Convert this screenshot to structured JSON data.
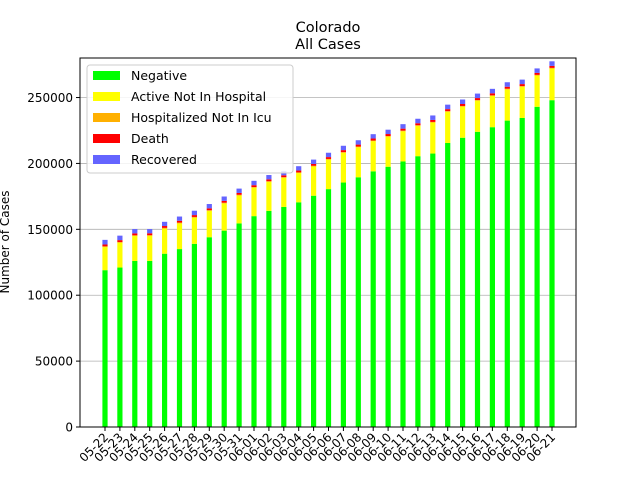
{
  "chart_data": {
    "type": "bar",
    "stacked": true,
    "title": "Colorado",
    "subtitle": "All Cases",
    "xlabel": "",
    "ylabel": "Number of Cases",
    "ylim": [
      0,
      280000
    ],
    "yticks": [
      0,
      50000,
      100000,
      150000,
      200000,
      250000
    ],
    "grid": "horizontal",
    "legend_position": "top-left",
    "categories": [
      "05-22",
      "05-23",
      "05-24",
      "05-25",
      "05-26",
      "05-27",
      "05-28",
      "05-29",
      "05-30",
      "05-31",
      "06-01",
      "06-02",
      "06-03",
      "06-04",
      "06-05",
      "06-06",
      "06-07",
      "06-08",
      "06-09",
      "06-10",
      "06-11",
      "06-12",
      "06-13",
      "06-14",
      "06-15",
      "06-16",
      "06-17",
      "06-18",
      "06-19",
      "06-20",
      "06-21"
    ],
    "series": [
      {
        "name": "Negative",
        "color": "#00ff00",
        "values": [
          119000,
          121000,
          126000,
          126000,
          131500,
          135000,
          139000,
          144000,
          149000,
          154500,
          160000,
          164000,
          167000,
          170500,
          175500,
          180500,
          185500,
          189500,
          194000,
          197500,
          201500,
          205500,
          207500,
          215500,
          219500,
          224000,
          227500,
          232500,
          234500,
          243000,
          248000
        ]
      },
      {
        "name": "Active Not In Hospital",
        "color": "#ffff00",
        "values": [
          17500,
          18800,
          18900,
          19000,
          19000,
          19500,
          19800,
          20000,
          20700,
          21200,
          21600,
          22000,
          22100,
          22200,
          22200,
          22400,
          22600,
          22800,
          22900,
          22800,
          22900,
          23000,
          23500,
          23700,
          23600,
          23600,
          23700,
          23700,
          23700,
          23700,
          24000
        ]
      },
      {
        "name": "Hospitalized Not In Icu",
        "color": "#ffb000",
        "values": [
          600,
          600,
          600,
          600,
          600,
          600,
          600,
          500,
          500,
          500,
          500,
          500,
          500,
          500,
          500,
          500,
          500,
          500,
          500,
          500,
          500,
          500,
          500,
          500,
          500,
          500,
          500,
          500,
          500,
          500,
          500
        ]
      },
      {
        "name": "Death",
        "color": "#ff0000",
        "values": [
          1400,
          1400,
          1400,
          1400,
          1400,
          1400,
          1400,
          1400,
          1400,
          1400,
          1400,
          1400,
          1400,
          1400,
          1400,
          1400,
          1500,
          1500,
          1500,
          1500,
          1500,
          1500,
          1500,
          1500,
          1500,
          1500,
          1500,
          1500,
          1500,
          1500,
          1500
        ]
      },
      {
        "name": "Recovered",
        "color": "#6464ff",
        "values": [
          3500,
          3400,
          3300,
          3200,
          3200,
          3200,
          3300,
          3300,
          3300,
          3300,
          3300,
          3300,
          3300,
          3300,
          3300,
          3300,
          3300,
          3300,
          3300,
          3300,
          3400,
          3400,
          3400,
          3400,
          3400,
          3400,
          3400,
          3400,
          3400,
          3400,
          3500
        ]
      }
    ]
  }
}
